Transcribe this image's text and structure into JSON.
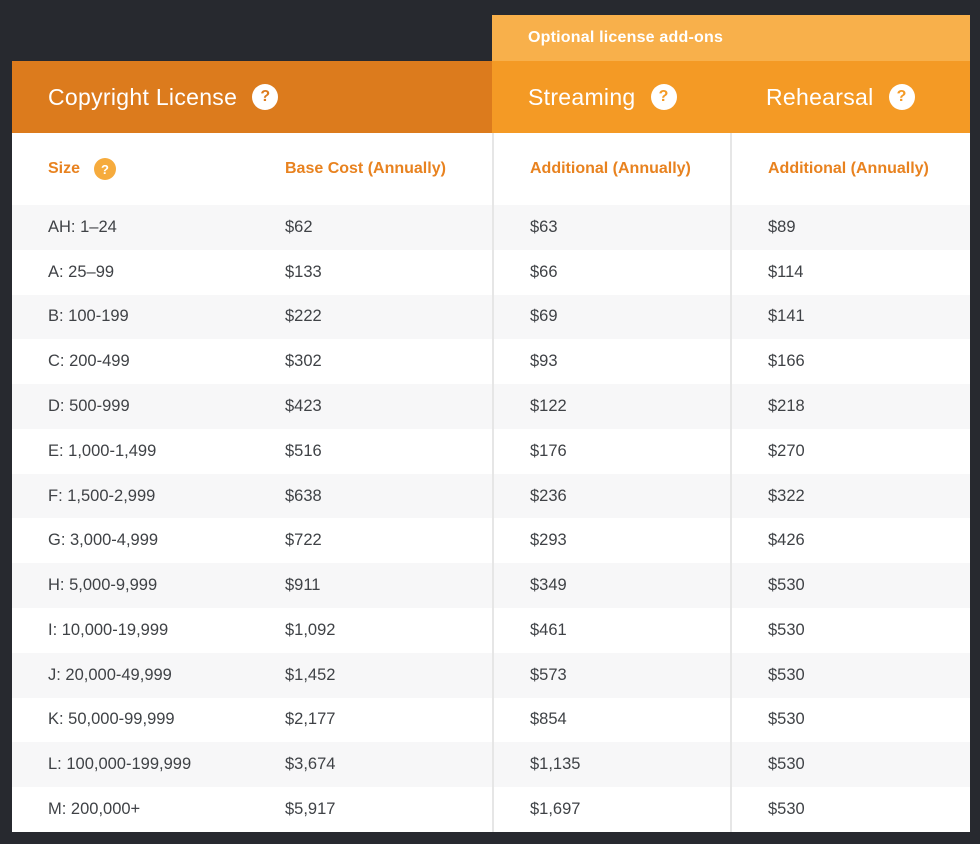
{
  "banner": {
    "label": "Optional license add-ons"
  },
  "headers": {
    "copyright": "Copyright License",
    "streaming": "Streaming",
    "rehearsal": "Rehearsal"
  },
  "columns": {
    "size": "Size",
    "base": "Base Cost (Annually)",
    "streaming_additional": "Additional (Annually)",
    "rehearsal_additional": "Additional (Annually)"
  },
  "icons": {
    "question": "?"
  },
  "colors": {
    "background_dark": "#27292f",
    "header_orange": "#dc7b1d",
    "addon_header_orange": "#f49a25",
    "banner_orange": "#f8b04b",
    "column_label_orange": "#e8821f",
    "size_badge_orange": "#f6ab3d",
    "row_stripe_gray": "#f7f7f8",
    "body_text": "#3f4246"
  },
  "rows": [
    {
      "size": "AH: 1–24",
      "base": "$62",
      "streaming": "$63",
      "rehearsal": "$89"
    },
    {
      "size": "A: 25–99",
      "base": "$133",
      "streaming": "$66",
      "rehearsal": "$114"
    },
    {
      "size": "B: 100-199",
      "base": "$222",
      "streaming": "$69",
      "rehearsal": "$141"
    },
    {
      "size": "C: 200-499",
      "base": "$302",
      "streaming": "$93",
      "rehearsal": "$166"
    },
    {
      "size": "D: 500-999",
      "base": "$423",
      "streaming": "$122",
      "rehearsal": "$218"
    },
    {
      "size": "E: 1,000-1,499",
      "base": "$516",
      "streaming": "$176",
      "rehearsal": "$270"
    },
    {
      "size": "F: 1,500-2,999",
      "base": "$638",
      "streaming": "$236",
      "rehearsal": "$322"
    },
    {
      "size": "G: 3,000-4,999",
      "base": "$722",
      "streaming": "$293",
      "rehearsal": "$426"
    },
    {
      "size": "H: 5,000-9,999",
      "base": "$911",
      "streaming": "$349",
      "rehearsal": "$530"
    },
    {
      "size": "I: 10,000-19,999",
      "base": "$1,092",
      "streaming": "$461",
      "rehearsal": "$530"
    },
    {
      "size": "J: 20,000-49,999",
      "base": "$1,452",
      "streaming": "$573",
      "rehearsal": "$530"
    },
    {
      "size": "K: 50,000-99,999",
      "base": "$2,177",
      "streaming": "$854",
      "rehearsal": "$530"
    },
    {
      "size": "L: 100,000-199,999",
      "base": "$3,674",
      "streaming": "$1,135",
      "rehearsal": "$530"
    },
    {
      "size": "M: 200,000+",
      "base": "$5,917",
      "streaming": "$1,697",
      "rehearsal": "$530"
    }
  ]
}
